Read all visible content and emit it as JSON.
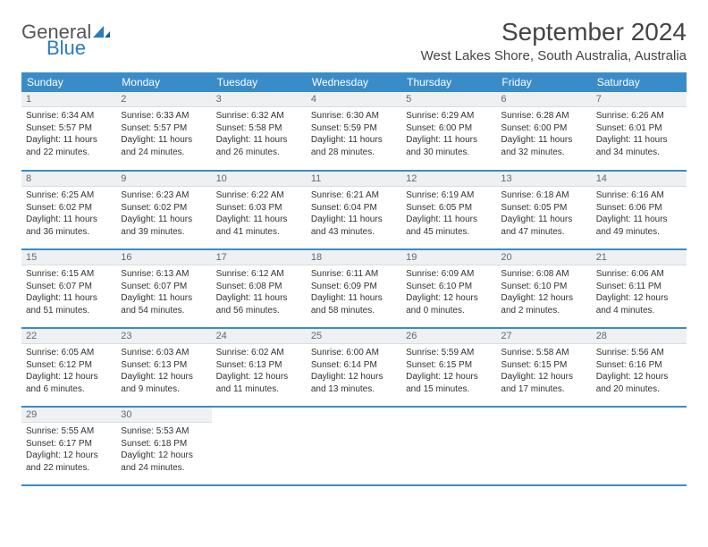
{
  "logo": {
    "general": "General",
    "blue": "Blue"
  },
  "title": "September 2024",
  "location": "West Lakes Shore, South Australia, Australia",
  "colors": {
    "header_bg": "#3a8cc9",
    "header_text": "#ffffff",
    "daybar_bg": "#eef0f2",
    "daybar_text": "#5f6a73",
    "row_divider": "#3a8cc9",
    "logo_blue": "#2b7bbf",
    "logo_gray": "#555555",
    "body_text": "#333333"
  },
  "dow": [
    "Sunday",
    "Monday",
    "Tuesday",
    "Wednesday",
    "Thursday",
    "Friday",
    "Saturday"
  ],
  "weeks": [
    [
      {
        "n": "1",
        "sr": "6:34 AM",
        "ss": "5:57 PM",
        "dl": "11 hours and 22 minutes."
      },
      {
        "n": "2",
        "sr": "6:33 AM",
        "ss": "5:57 PM",
        "dl": "11 hours and 24 minutes."
      },
      {
        "n": "3",
        "sr": "6:32 AM",
        "ss": "5:58 PM",
        "dl": "11 hours and 26 minutes."
      },
      {
        "n": "4",
        "sr": "6:30 AM",
        "ss": "5:59 PM",
        "dl": "11 hours and 28 minutes."
      },
      {
        "n": "5",
        "sr": "6:29 AM",
        "ss": "6:00 PM",
        "dl": "11 hours and 30 minutes."
      },
      {
        "n": "6",
        "sr": "6:28 AM",
        "ss": "6:00 PM",
        "dl": "11 hours and 32 minutes."
      },
      {
        "n": "7",
        "sr": "6:26 AM",
        "ss": "6:01 PM",
        "dl": "11 hours and 34 minutes."
      }
    ],
    [
      {
        "n": "8",
        "sr": "6:25 AM",
        "ss": "6:02 PM",
        "dl": "11 hours and 36 minutes."
      },
      {
        "n": "9",
        "sr": "6:23 AM",
        "ss": "6:02 PM",
        "dl": "11 hours and 39 minutes."
      },
      {
        "n": "10",
        "sr": "6:22 AM",
        "ss": "6:03 PM",
        "dl": "11 hours and 41 minutes."
      },
      {
        "n": "11",
        "sr": "6:21 AM",
        "ss": "6:04 PM",
        "dl": "11 hours and 43 minutes."
      },
      {
        "n": "12",
        "sr": "6:19 AM",
        "ss": "6:05 PM",
        "dl": "11 hours and 45 minutes."
      },
      {
        "n": "13",
        "sr": "6:18 AM",
        "ss": "6:05 PM",
        "dl": "11 hours and 47 minutes."
      },
      {
        "n": "14",
        "sr": "6:16 AM",
        "ss": "6:06 PM",
        "dl": "11 hours and 49 minutes."
      }
    ],
    [
      {
        "n": "15",
        "sr": "6:15 AM",
        "ss": "6:07 PM",
        "dl": "11 hours and 51 minutes."
      },
      {
        "n": "16",
        "sr": "6:13 AM",
        "ss": "6:07 PM",
        "dl": "11 hours and 54 minutes."
      },
      {
        "n": "17",
        "sr": "6:12 AM",
        "ss": "6:08 PM",
        "dl": "11 hours and 56 minutes."
      },
      {
        "n": "18",
        "sr": "6:11 AM",
        "ss": "6:09 PM",
        "dl": "11 hours and 58 minutes."
      },
      {
        "n": "19",
        "sr": "6:09 AM",
        "ss": "6:10 PM",
        "dl": "12 hours and 0 minutes."
      },
      {
        "n": "20",
        "sr": "6:08 AM",
        "ss": "6:10 PM",
        "dl": "12 hours and 2 minutes."
      },
      {
        "n": "21",
        "sr": "6:06 AM",
        "ss": "6:11 PM",
        "dl": "12 hours and 4 minutes."
      }
    ],
    [
      {
        "n": "22",
        "sr": "6:05 AM",
        "ss": "6:12 PM",
        "dl": "12 hours and 6 minutes."
      },
      {
        "n": "23",
        "sr": "6:03 AM",
        "ss": "6:13 PM",
        "dl": "12 hours and 9 minutes."
      },
      {
        "n": "24",
        "sr": "6:02 AM",
        "ss": "6:13 PM",
        "dl": "12 hours and 11 minutes."
      },
      {
        "n": "25",
        "sr": "6:00 AM",
        "ss": "6:14 PM",
        "dl": "12 hours and 13 minutes."
      },
      {
        "n": "26",
        "sr": "5:59 AM",
        "ss": "6:15 PM",
        "dl": "12 hours and 15 minutes."
      },
      {
        "n": "27",
        "sr": "5:58 AM",
        "ss": "6:15 PM",
        "dl": "12 hours and 17 minutes."
      },
      {
        "n": "28",
        "sr": "5:56 AM",
        "ss": "6:16 PM",
        "dl": "12 hours and 20 minutes."
      }
    ],
    [
      {
        "n": "29",
        "sr": "5:55 AM",
        "ss": "6:17 PM",
        "dl": "12 hours and 22 minutes."
      },
      {
        "n": "30",
        "sr": "5:53 AM",
        "ss": "6:18 PM",
        "dl": "12 hours and 24 minutes."
      },
      null,
      null,
      null,
      null,
      null
    ]
  ],
  "labels": {
    "sunrise": "Sunrise:",
    "sunset": "Sunset:",
    "daylight": "Daylight:"
  }
}
